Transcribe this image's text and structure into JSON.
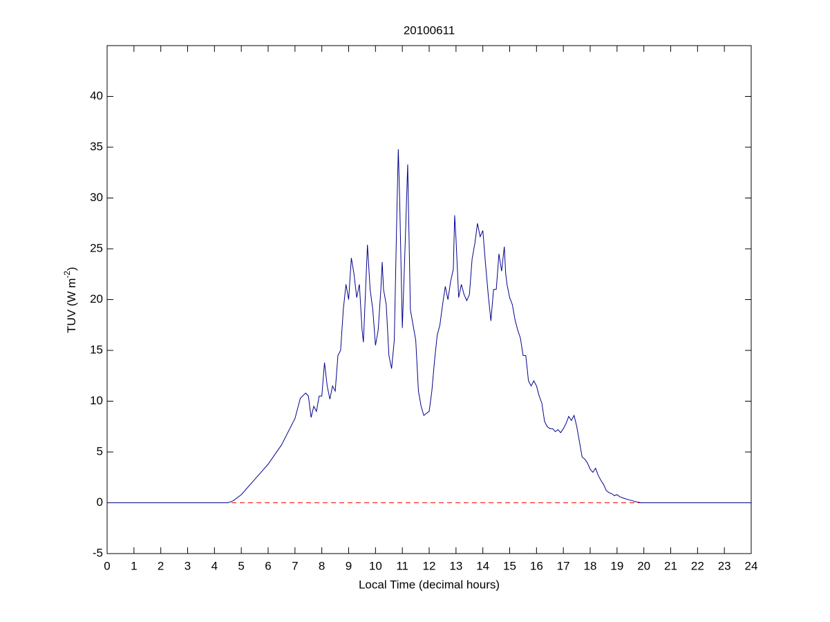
{
  "chart_data": {
    "type": "line",
    "title": "20100611",
    "xlabel": "Local Time (decimal hours)",
    "ylabel": {
      "text": "TUV (W m",
      "superscript": "-2",
      "suffix": ")"
    },
    "xlim": [
      0,
      24
    ],
    "ylim": [
      -5,
      45
    ],
    "xticks": [
      0,
      1,
      2,
      3,
      4,
      5,
      6,
      7,
      8,
      9,
      10,
      11,
      12,
      13,
      14,
      15,
      16,
      17,
      18,
      19,
      20,
      21,
      22,
      23,
      24
    ],
    "yticks": [
      -5,
      0,
      5,
      10,
      15,
      20,
      25,
      30,
      35,
      40
    ],
    "reference_line": {
      "y": 0,
      "color": "#ff0000",
      "style": "dashed"
    },
    "series": [
      {
        "color": "#00008b",
        "x": [
          0,
          4.5,
          4.7,
          5,
          5.5,
          6,
          6.5,
          7,
          7.2,
          7.4,
          7.5,
          7.6,
          7.7,
          7.8,
          7.9,
          8,
          8.1,
          8.2,
          8.3,
          8.4,
          8.5,
          8.6,
          8.7,
          8.8,
          8.9,
          9,
          9.1,
          9.2,
          9.3,
          9.4,
          9.5,
          9.55,
          9.6,
          9.7,
          9.8,
          9.9,
          10,
          10.1,
          10.2,
          10.25,
          10.3,
          10.4,
          10.5,
          10.6,
          10.7,
          10.8,
          10.85,
          10.9,
          11,
          11.1,
          11.2,
          11.3,
          11.4,
          11.5,
          11.6,
          11.7,
          11.8,
          11.9,
          12,
          12.1,
          12.2,
          12.3,
          12.4,
          12.5,
          12.6,
          12.7,
          12.8,
          12.9,
          12.95,
          13,
          13.1,
          13.2,
          13.3,
          13.4,
          13.5,
          13.6,
          13.7,
          13.8,
          13.9,
          14,
          14.1,
          14.2,
          14.3,
          14.4,
          14.5,
          14.6,
          14.7,
          14.8,
          14.85,
          14.9,
          15,
          15.1,
          15.2,
          15.3,
          15.4,
          15.5,
          15.6,
          15.7,
          15.8,
          15.9,
          16,
          16.1,
          16.2,
          16.3,
          16.4,
          16.5,
          16.6,
          16.7,
          16.8,
          16.9,
          17,
          17.1,
          17.2,
          17.3,
          17.4,
          17.5,
          17.6,
          17.7,
          17.8,
          17.9,
          18,
          18.1,
          18.2,
          18.3,
          18.4,
          18.5,
          18.6,
          18.7,
          18.8,
          18.9,
          19,
          19.1,
          19.3,
          19.5,
          19.7,
          19.9,
          24
        ],
        "values": [
          0,
          0,
          0.2,
          0.8,
          2.3,
          3.8,
          5.7,
          8.3,
          10.3,
          10.8,
          10.5,
          8.4,
          9.5,
          9,
          10.5,
          10.5,
          13.8,
          11.5,
          10.2,
          11.5,
          11,
          14.5,
          15,
          19,
          21.5,
          20,
          24.1,
          22.5,
          20.2,
          21.5,
          17,
          15.8,
          19,
          25.4,
          21,
          19,
          15.5,
          17,
          21,
          23.7,
          21,
          19.5,
          14.5,
          13.2,
          16,
          29,
          34.8,
          30,
          17.2,
          25,
          33.3,
          19,
          17.5,
          16,
          11,
          9.5,
          8.6,
          8.8,
          9,
          11,
          14,
          16.5,
          17.5,
          19.5,
          21.3,
          20,
          21.8,
          23,
          28.3,
          26,
          20.2,
          21.5,
          20.5,
          19.9,
          20.5,
          24,
          25.5,
          27.5,
          26.2,
          26.8,
          23.5,
          20.5,
          17.9,
          21,
          21,
          24.5,
          22.8,
          25.2,
          22.6,
          21.5,
          20.2,
          19.5,
          18,
          17,
          16.2,
          14.5,
          14.5,
          12,
          11.5,
          12,
          11.5,
          10.5,
          9.8,
          8,
          7.5,
          7.3,
          7.3,
          7,
          7.2,
          6.9,
          7.3,
          7.8,
          8.5,
          8.1,
          8.6,
          7.5,
          6,
          4.5,
          4.3,
          3.9,
          3.3,
          3,
          3.4,
          2.7,
          2.2,
          1.8,
          1.2,
          1,
          0.9,
          0.7,
          0.8,
          0.6,
          0.4,
          0.25,
          0.1,
          0,
          0
        ]
      }
    ]
  }
}
